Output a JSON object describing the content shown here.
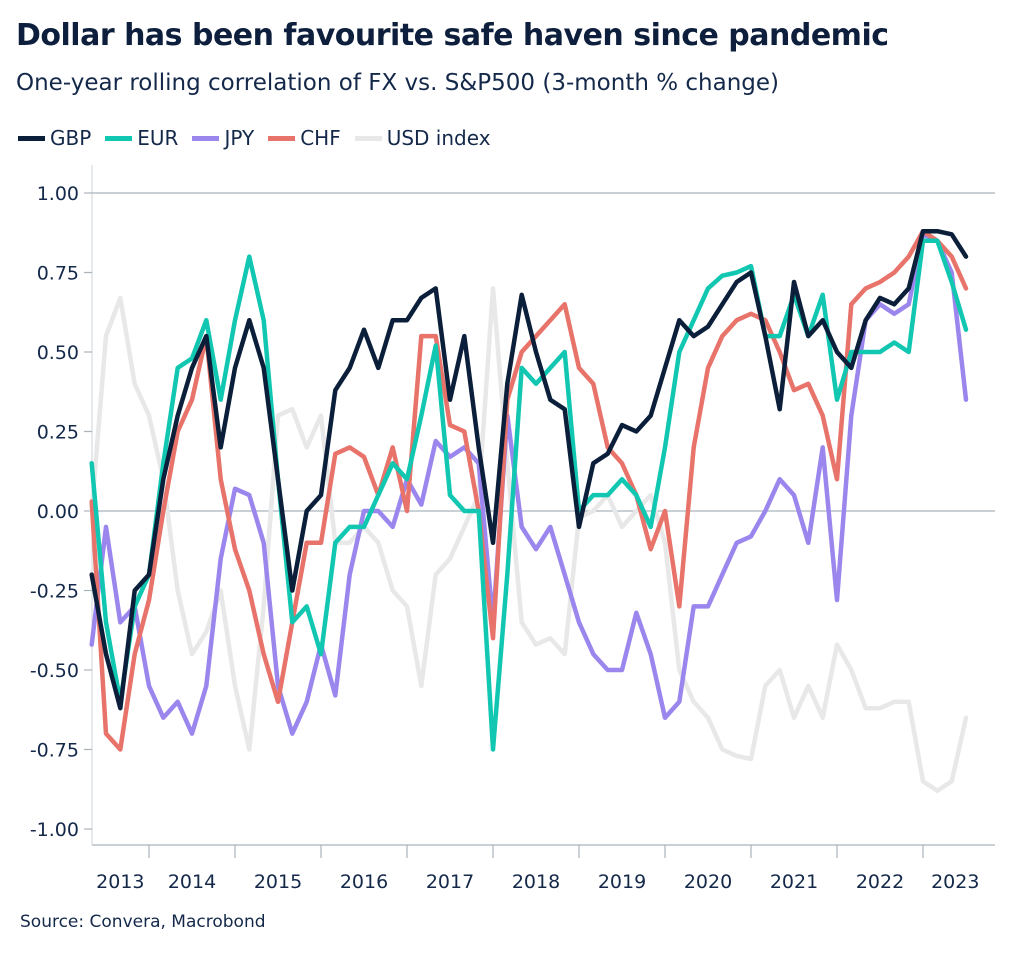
{
  "title": "Dollar has been favourite safe haven since pandemic",
  "subtitle": "One-year rolling correlation of FX vs. S&P500 (3-month % change)",
  "source": "Source: Convera, Macrobond",
  "chart_data": {
    "type": "line",
    "title": "Dollar has been favourite safe haven since pandemic",
    "subtitle": "One-year rolling correlation of FX vs. S&P500 (3-month % change)",
    "xlabel": "",
    "ylabel": "",
    "ylim": [
      -1,
      1
    ],
    "y_ticks": [
      "1.00",
      "0.75",
      "0.50",
      "0.25",
      "0.00",
      "-0.25",
      "-0.50",
      "-0.75",
      "-1.00"
    ],
    "y_tick_values": [
      1,
      0.75,
      0.5,
      0.25,
      0,
      -0.25,
      -0.5,
      -0.75,
      -1
    ],
    "x_tick_labels": [
      "2013",
      "2014",
      "2015",
      "2016",
      "2017",
      "2018",
      "2019",
      "2020",
      "2021",
      "2022",
      "2023"
    ],
    "xlim": [
      "2013-05",
      "2023-07"
    ],
    "grid": "horizontal lines at 1.00, 0.00",
    "legend_position": "top-left",
    "x": [
      "2013-05",
      "2013-07",
      "2013-09",
      "2013-11",
      "2014-01",
      "2014-03",
      "2014-05",
      "2014-07",
      "2014-09",
      "2014-11",
      "2015-01",
      "2015-03",
      "2015-05",
      "2015-07",
      "2015-09",
      "2015-11",
      "2016-01",
      "2016-03",
      "2016-05",
      "2016-07",
      "2016-09",
      "2016-11",
      "2017-01",
      "2017-03",
      "2017-05",
      "2017-07",
      "2017-09",
      "2017-11",
      "2018-01",
      "2018-03",
      "2018-05",
      "2018-07",
      "2018-09",
      "2018-11",
      "2019-01",
      "2019-03",
      "2019-05",
      "2019-07",
      "2019-09",
      "2019-11",
      "2020-01",
      "2020-03",
      "2020-05",
      "2020-07",
      "2020-09",
      "2020-11",
      "2021-01",
      "2021-03",
      "2021-05",
      "2021-07",
      "2021-09",
      "2021-11",
      "2022-01",
      "2022-03",
      "2022-05",
      "2022-07",
      "2022-09",
      "2022-11",
      "2023-01",
      "2023-03",
      "2023-05",
      "2023-07"
    ],
    "series": [
      {
        "name": "USD index",
        "color": "#e8e8e8",
        "values": [
          0.0,
          0.55,
          0.67,
          0.4,
          0.3,
          0.1,
          -0.25,
          -0.45,
          -0.38,
          -0.25,
          -0.55,
          -0.75,
          -0.3,
          0.3,
          0.32,
          0.2,
          0.3,
          -0.1,
          -0.1,
          -0.05,
          -0.1,
          -0.25,
          -0.3,
          -0.55,
          -0.2,
          -0.15,
          -0.05,
          0.05,
          0.7,
          0.15,
          -0.35,
          -0.42,
          -0.4,
          -0.45,
          -0.02,
          0.0,
          0.05,
          -0.05,
          0.0,
          0.05,
          -0.1,
          -0.5,
          -0.6,
          -0.65,
          -0.75,
          -0.77,
          -0.78,
          -0.55,
          -0.5,
          -0.65,
          -0.55,
          -0.65,
          -0.42,
          -0.5,
          -0.62,
          -0.62,
          -0.6,
          -0.6,
          -0.85,
          -0.88,
          -0.85,
          -0.65
        ]
      },
      {
        "name": "JPY",
        "color": "#9b86ee",
        "values": [
          -0.42,
          -0.05,
          -0.35,
          -0.3,
          -0.55,
          -0.65,
          -0.6,
          -0.7,
          -0.55,
          -0.15,
          0.07,
          0.05,
          -0.1,
          -0.55,
          -0.7,
          -0.6,
          -0.42,
          -0.58,
          -0.2,
          0.0,
          0.0,
          -0.05,
          0.1,
          0.02,
          0.22,
          0.17,
          0.2,
          0.15,
          -0.35,
          0.3,
          -0.05,
          -0.12,
          -0.05,
          -0.2,
          -0.35,
          -0.45,
          -0.5,
          -0.5,
          -0.32,
          -0.45,
          -0.65,
          -0.6,
          -0.3,
          -0.3,
          -0.2,
          -0.1,
          -0.08,
          0.0,
          0.1,
          0.05,
          -0.1,
          0.2,
          -0.28,
          0.3,
          0.6,
          0.65,
          0.62,
          0.65,
          0.87,
          0.85,
          0.75,
          0.35
        ]
      },
      {
        "name": "CHF",
        "color": "#e8736a",
        "values": [
          0.03,
          -0.7,
          -0.75,
          -0.45,
          -0.28,
          0.0,
          0.25,
          0.35,
          0.55,
          0.1,
          -0.12,
          -0.25,
          -0.45,
          -0.6,
          -0.35,
          -0.1,
          -0.1,
          0.18,
          0.2,
          0.17,
          0.05,
          0.2,
          0.0,
          0.55,
          0.55,
          0.27,
          0.25,
          0.0,
          -0.4,
          0.35,
          0.5,
          0.55,
          0.6,
          0.65,
          0.45,
          0.4,
          0.2,
          0.15,
          0.05,
          -0.12,
          0.0,
          -0.3,
          0.2,
          0.45,
          0.55,
          0.6,
          0.62,
          0.6,
          0.5,
          0.38,
          0.4,
          0.3,
          0.1,
          0.65,
          0.7,
          0.72,
          0.75,
          0.8,
          0.88,
          0.85,
          0.8,
          0.7
        ]
      },
      {
        "name": "EUR",
        "color": "#12c7b1",
        "values": [
          0.15,
          -0.35,
          -0.6,
          -0.3,
          -0.2,
          0.15,
          0.45,
          0.48,
          0.6,
          0.35,
          0.6,
          0.8,
          0.6,
          0.1,
          -0.35,
          -0.3,
          -0.45,
          -0.1,
          -0.05,
          -0.05,
          0.05,
          0.15,
          0.1,
          0.3,
          0.52,
          0.05,
          0.0,
          0.0,
          -0.75,
          -0.2,
          0.45,
          0.4,
          0.45,
          0.5,
          0.0,
          0.05,
          0.05,
          0.1,
          0.05,
          -0.05,
          0.2,
          0.5,
          0.6,
          0.7,
          0.74,
          0.75,
          0.77,
          0.55,
          0.55,
          0.68,
          0.55,
          0.68,
          0.35,
          0.5,
          0.5,
          0.5,
          0.53,
          0.5,
          0.85,
          0.85,
          0.72,
          0.57
        ]
      },
      {
        "name": "GBP",
        "color": "#0b1f3a",
        "values": [
          -0.2,
          -0.45,
          -0.62,
          -0.25,
          -0.2,
          0.1,
          0.3,
          0.45,
          0.55,
          0.2,
          0.45,
          0.6,
          0.45,
          0.1,
          -0.25,
          0.0,
          0.05,
          0.38,
          0.45,
          0.57,
          0.45,
          0.6,
          0.6,
          0.67,
          0.7,
          0.35,
          0.55,
          0.2,
          -0.1,
          0.4,
          0.68,
          0.5,
          0.35,
          0.32,
          -0.05,
          0.15,
          0.18,
          0.27,
          0.25,
          0.3,
          0.45,
          0.6,
          0.55,
          0.58,
          0.65,
          0.72,
          0.75,
          0.55,
          0.32,
          0.72,
          0.55,
          0.6,
          0.5,
          0.45,
          0.6,
          0.67,
          0.65,
          0.7,
          0.88,
          0.88,
          0.87,
          0.8
        ]
      }
    ],
    "legend": [
      {
        "name": "GBP",
        "color": "#0b1f3a"
      },
      {
        "name": "EUR",
        "color": "#12c7b1"
      },
      {
        "name": "JPY",
        "color": "#9b86ee"
      },
      {
        "name": "CHF",
        "color": "#e8736a"
      },
      {
        "name": "USD index",
        "color": "#e8e8e8"
      }
    ]
  }
}
